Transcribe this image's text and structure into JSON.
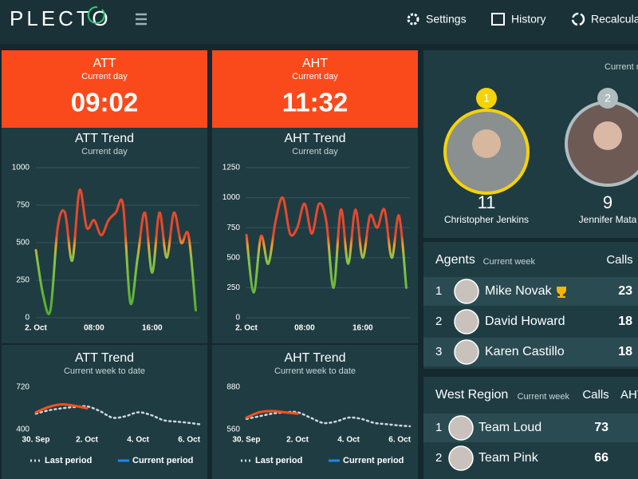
{
  "header": {
    "logo": "PLECTO",
    "nav": [
      "Settings",
      "History",
      "Recalculate"
    ]
  },
  "kpis": [
    {
      "title": "ATT",
      "subtitle": "Current day",
      "value": "09:02",
      "trend": {
        "type": "line",
        "title": "ATT Trend",
        "subtitle": "Current day",
        "x": [
          0,
          1,
          2,
          3,
          4,
          5,
          6,
          7,
          8,
          9,
          10,
          11,
          12,
          13,
          14,
          15,
          16,
          17,
          18,
          19,
          20,
          21,
          22
        ],
        "values": [
          450,
          150,
          50,
          600,
          700,
          380,
          850,
          600,
          650,
          550,
          650,
          700,
          750,
          100,
          400,
          700,
          300,
          700,
          400,
          700,
          500,
          550,
          50
        ],
        "xlim": [
          0,
          22.5
        ],
        "xticks": [
          {
            "value": 0,
            "label": "2. Oct"
          },
          {
            "value": 8,
            "label": "08:00"
          },
          {
            "value": 16,
            "label": "16:00"
          }
        ],
        "ylim": [
          0,
          1000
        ],
        "yticks": [
          0,
          250,
          500,
          750,
          1000
        ],
        "grid": true
      },
      "weekly": {
        "type": "line",
        "title": "ATT Trend",
        "subtitle": "Current week to date",
        "x": [
          0,
          0.5,
          1,
          1.5,
          2,
          2.5,
          3,
          3.5,
          4,
          4.5,
          5,
          5.5,
          6,
          6.4
        ],
        "xlim": [
          0,
          6.4
        ],
        "xticks": [
          {
            "value": 0,
            "label": "30. Sep"
          },
          {
            "value": 2,
            "label": "2. Oct"
          },
          {
            "value": 4,
            "label": "4. Oct"
          },
          {
            "value": 6,
            "label": "6. Oct"
          }
        ],
        "ylim": [
          400,
          720
        ],
        "yticks": [
          400,
          720
        ],
        "series": [
          {
            "name": "Last period",
            "color": "#cfd8dc",
            "dashed": true,
            "values": [
              520,
              545,
              560,
              570,
              575,
              540,
              490,
              500,
              530,
              510,
              470,
              460,
              450,
              440
            ]
          },
          {
            "name": "Current period",
            "color": "#f4511e",
            "values": [
              530,
              570,
              590,
              580,
              560,
              null,
              null,
              null,
              null,
              null,
              null,
              null,
              null,
              null
            ]
          }
        ]
      }
    },
    {
      "title": "AHT",
      "subtitle": "Current day",
      "value": "11:32",
      "trend": {
        "type": "line",
        "title": "AHT Trend",
        "subtitle": "Current day",
        "x": [
          0,
          1,
          2,
          3,
          4,
          5,
          6,
          7,
          8,
          9,
          10,
          11,
          12,
          13,
          14,
          15,
          16,
          17,
          18,
          19,
          20,
          21,
          22
        ],
        "values": [
          690,
          210,
          680,
          450,
          800,
          1000,
          700,
          750,
          950,
          700,
          950,
          800,
          250,
          900,
          450,
          900,
          500,
          850,
          750,
          900,
          500,
          850,
          250
        ],
        "xlim": [
          0,
          22.5
        ],
        "xticks": [
          {
            "value": 0,
            "label": "2. Oct"
          },
          {
            "value": 8,
            "label": "08:00"
          },
          {
            "value": 16,
            "label": "16:00"
          }
        ],
        "ylim": [
          0,
          1250
        ],
        "yticks": [
          0,
          250,
          500,
          750,
          1000,
          1250
        ],
        "grid": true
      },
      "weekly": {
        "type": "line",
        "title": "AHT Trend",
        "subtitle": "Current week to date",
        "x": [
          0,
          0.5,
          1,
          1.5,
          2,
          2.5,
          3,
          3.5,
          4,
          4.5,
          5,
          5.5,
          6,
          6.4
        ],
        "xlim": [
          0,
          6.4
        ],
        "xticks": [
          {
            "value": 0,
            "label": "30. Sep"
          },
          {
            "value": 2,
            "label": "2. Oct"
          },
          {
            "value": 4,
            "label": "4. Oct"
          },
          {
            "value": 6,
            "label": "6. Oct"
          }
        ],
        "ylim": [
          560,
          880
        ],
        "yticks": [
          560,
          880
        ],
        "series": [
          {
            "name": "Last period",
            "color": "#cfd8dc",
            "dashed": true,
            "values": [
              640,
              660,
              680,
              690,
              690,
              650,
              610,
              620,
              650,
              640,
              610,
              600,
              590,
              585
            ]
          },
          {
            "name": "Current period",
            "color": "#f4511e",
            "values": [
              650,
              690,
              700,
              690,
              680,
              null,
              null,
              null,
              null,
              null,
              null,
              null,
              null,
              null
            ]
          }
        ]
      }
    }
  ],
  "leaderboard": {
    "subtitle": "Current month",
    "leaders": [
      {
        "rank": 1,
        "score": 11,
        "name": "Christopher Jenkins"
      },
      {
        "rank": 2,
        "score": 9,
        "name": "Jennifer Mata"
      }
    ]
  },
  "agents": {
    "title": "Agents",
    "subtitle": "Current week",
    "columns": [
      "Calls"
    ],
    "rows": [
      {
        "rank": 1,
        "name": "Mike Novak",
        "calls": 23
      },
      {
        "rank": 2,
        "name": "David Howard",
        "calls": 18
      },
      {
        "rank": 3,
        "name": "Karen Castillo",
        "calls": 18
      }
    ]
  },
  "region": {
    "title": "West Region",
    "subtitle": "Current week",
    "columns": [
      "Calls",
      "AHT"
    ],
    "rows": [
      {
        "rank": 1,
        "name": "Team Loud",
        "calls": 73
      },
      {
        "rank": 2,
        "name": "Team Pink",
        "calls": 66
      }
    ]
  }
}
